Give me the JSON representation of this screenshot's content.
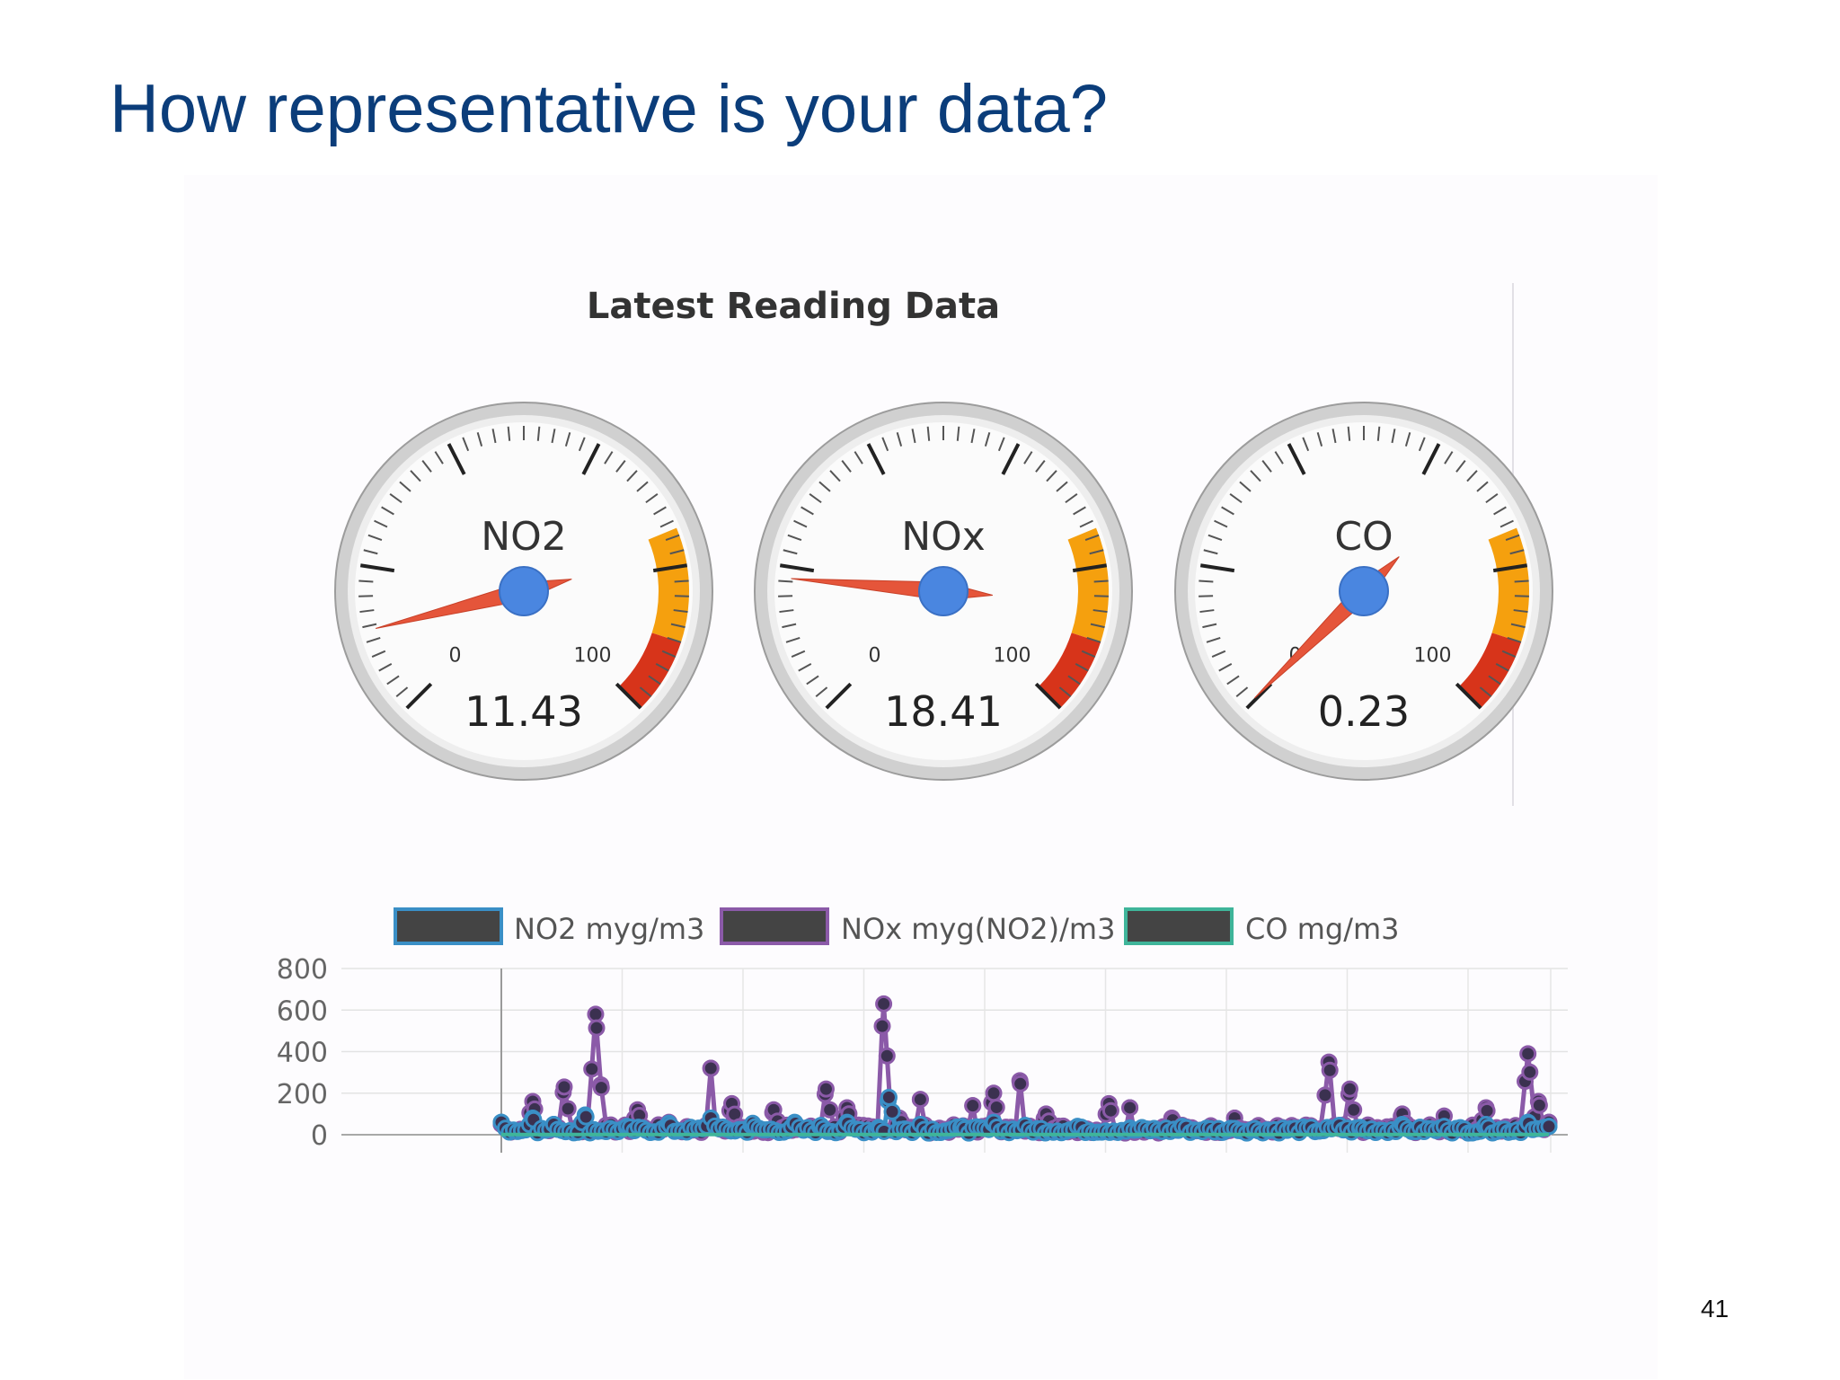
{
  "slide": {
    "title": "How representative is your data?",
    "page_number": "41"
  },
  "colors": {
    "title": "#0b3d7a",
    "gauge_orange": "#f5a00e",
    "gauge_red": "#d7341a",
    "needle": "#e5553a",
    "hub": "#4a86e0",
    "no2_series": "#3a8fc6",
    "nox_series": "#8b5aa8",
    "co_series": "#3fb59a"
  },
  "chart_data": [
    {
      "type": "gauge",
      "title": "Latest Reading Data",
      "gauges": [
        {
          "label": "NO2",
          "value": 11.43,
          "value_text": "11.43",
          "min": 0,
          "max": 100,
          "min_label": "0",
          "max_label": "100",
          "yellow_from": 75,
          "yellow_to": 90,
          "red_from": 90,
          "red_to": 100
        },
        {
          "label": "NOx",
          "value": 18.41,
          "value_text": "18.41",
          "min": 0,
          "max": 100,
          "min_label": "0",
          "max_label": "100",
          "yellow_from": 75,
          "yellow_to": 90,
          "red_from": 90,
          "red_to": 100
        },
        {
          "label": "CO",
          "value": 0.23,
          "value_text": "0.23",
          "min": 0,
          "max": 100,
          "min_label": "0",
          "max_label": "100",
          "yellow_from": 75,
          "yellow_to": 90,
          "red_from": 90,
          "red_to": 100
        }
      ]
    },
    {
      "type": "line",
      "legend_position": "top",
      "grid": true,
      "ylim": [
        0,
        800
      ],
      "yticks": [
        0,
        200,
        400,
        600,
        800
      ],
      "ytick_labels": [
        "0",
        "200",
        "400",
        "600",
        "800"
      ],
      "series": [
        {
          "name": "NO2 myg/m3",
          "color": "#3a8fc6",
          "peaks": [
            [
              0.0,
              60
            ],
            [
              0.03,
              80
            ],
            [
              0.05,
              50
            ],
            [
              0.08,
              95
            ],
            [
              0.12,
              40
            ],
            [
              0.16,
              55
            ],
            [
              0.2,
              80
            ],
            [
              0.24,
              55
            ],
            [
              0.28,
              60
            ],
            [
              0.305,
              45
            ],
            [
              0.33,
              60
            ],
            [
              0.36,
              35
            ],
            [
              0.37,
              180
            ],
            [
              0.4,
              50
            ],
            [
              0.44,
              40
            ],
            [
              0.47,
              60
            ],
            [
              0.5,
              45
            ],
            [
              0.55,
              40
            ],
            [
              0.6,
              30
            ],
            [
              0.65,
              40
            ],
            [
              0.7,
              30
            ],
            [
              0.8,
              45
            ],
            [
              0.82,
              35
            ],
            [
              0.86,
              50
            ],
            [
              0.9,
              40
            ],
            [
              0.94,
              50
            ],
            [
              0.98,
              60
            ],
            [
              1.0,
              40
            ]
          ]
        },
        {
          "name": "NOx myg(NO2)/m3",
          "color": "#8b5aa8",
          "peaks": [
            [
              0.0,
              50
            ],
            [
              0.03,
              160
            ],
            [
              0.06,
              230
            ],
            [
              0.09,
              580
            ],
            [
              0.095,
              240
            ],
            [
              0.13,
              120
            ],
            [
              0.16,
              60
            ],
            [
              0.2,
              320
            ],
            [
              0.22,
              150
            ],
            [
              0.26,
              120
            ],
            [
              0.31,
              220
            ],
            [
              0.33,
              130
            ],
            [
              0.365,
              630
            ],
            [
              0.38,
              80
            ],
            [
              0.4,
              170
            ],
            [
              0.45,
              140
            ],
            [
              0.47,
              200
            ],
            [
              0.495,
              260
            ],
            [
              0.52,
              100
            ],
            [
              0.58,
              150
            ],
            [
              0.6,
              130
            ],
            [
              0.64,
              80
            ],
            [
              0.7,
              80
            ],
            [
              0.79,
              350
            ],
            [
              0.81,
              220
            ],
            [
              0.86,
              100
            ],
            [
              0.9,
              90
            ],
            [
              0.94,
              130
            ],
            [
              0.98,
              390
            ],
            [
              0.99,
              160
            ],
            [
              1.0,
              60
            ]
          ]
        },
        {
          "name": "CO mg/m3",
          "color": "#3fb59a",
          "peaks": [
            [
              0.0,
              1
            ],
            [
              0.5,
              1
            ],
            [
              1.0,
              1
            ]
          ]
        }
      ]
    }
  ]
}
